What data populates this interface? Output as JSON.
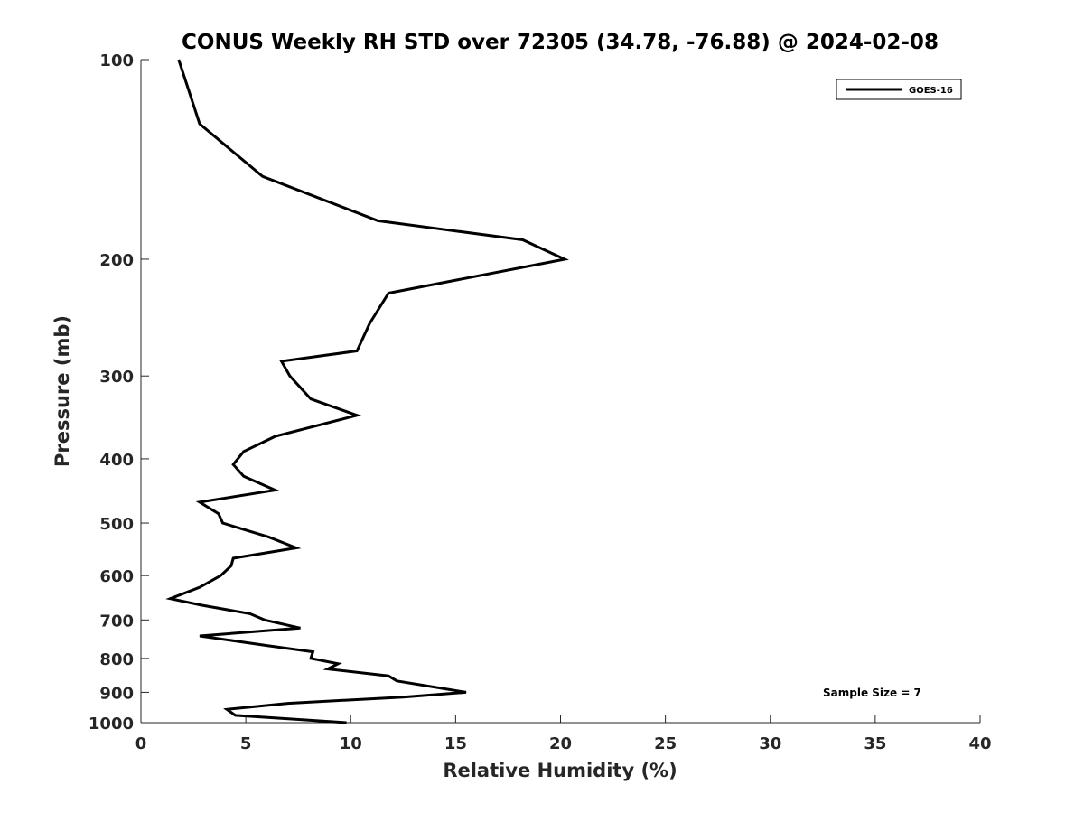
{
  "chart_data": {
    "type": "line",
    "title": "CONUS Weekly RH STD over 72305 (34.78, -76.88) @ 2024-02-08",
    "xlabel": "Relative Humidity (%)",
    "ylabel": "Pressure (mb)",
    "xlim": [
      0,
      40
    ],
    "ylim": [
      100,
      1000
    ],
    "y_scale": "log",
    "y_reversed": true,
    "grid": false,
    "legend_position": "top-right",
    "x_ticks": [
      "0",
      "5",
      "10",
      "15",
      "20",
      "25",
      "30",
      "35",
      "40"
    ],
    "y_ticks": [
      "100",
      "200",
      "300",
      "400",
      "500",
      "600",
      "700",
      "800",
      "900",
      "1000"
    ],
    "annotation": "Sample Size = 7",
    "series": [
      {
        "name": "GOES-16",
        "color": "#000000",
        "points": [
          [
            1.8,
            100
          ],
          [
            2.8,
            125
          ],
          [
            5.8,
            150
          ],
          [
            11.3,
            175
          ],
          [
            18.2,
            187
          ],
          [
            20.2,
            200
          ],
          [
            11.8,
            225
          ],
          [
            10.9,
            250
          ],
          [
            10.3,
            275
          ],
          [
            6.7,
            285
          ],
          [
            7.1,
            300
          ],
          [
            8.1,
            325
          ],
          [
            10.3,
            344
          ],
          [
            6.4,
            370
          ],
          [
            4.9,
            390
          ],
          [
            4.4,
            408
          ],
          [
            4.9,
            425
          ],
          [
            6.4,
            446
          ],
          [
            2.8,
            465
          ],
          [
            3.7,
            484
          ],
          [
            3.9,
            500
          ],
          [
            6.1,
            525
          ],
          [
            7.4,
            545
          ],
          [
            4.4,
            565
          ],
          [
            4.3,
            580
          ],
          [
            3.8,
            600
          ],
          [
            2.8,
            625
          ],
          [
            1.4,
            650
          ],
          [
            2.9,
            665
          ],
          [
            5.2,
            685
          ],
          [
            5.9,
            700
          ],
          [
            7.6,
            720
          ],
          [
            2.8,
            740
          ],
          [
            6.0,
            765
          ],
          [
            8.2,
            782
          ],
          [
            8.1,
            800
          ],
          [
            9.4,
            815
          ],
          [
            8.9,
            830
          ],
          [
            11.8,
            850
          ],
          [
            12.2,
            865
          ],
          [
            15.5,
            900
          ],
          [
            12.5,
            915
          ],
          [
            7.0,
            935
          ],
          [
            4.1,
            955
          ],
          [
            4.5,
            975
          ],
          [
            9.8,
            1000
          ]
        ]
      }
    ]
  }
}
